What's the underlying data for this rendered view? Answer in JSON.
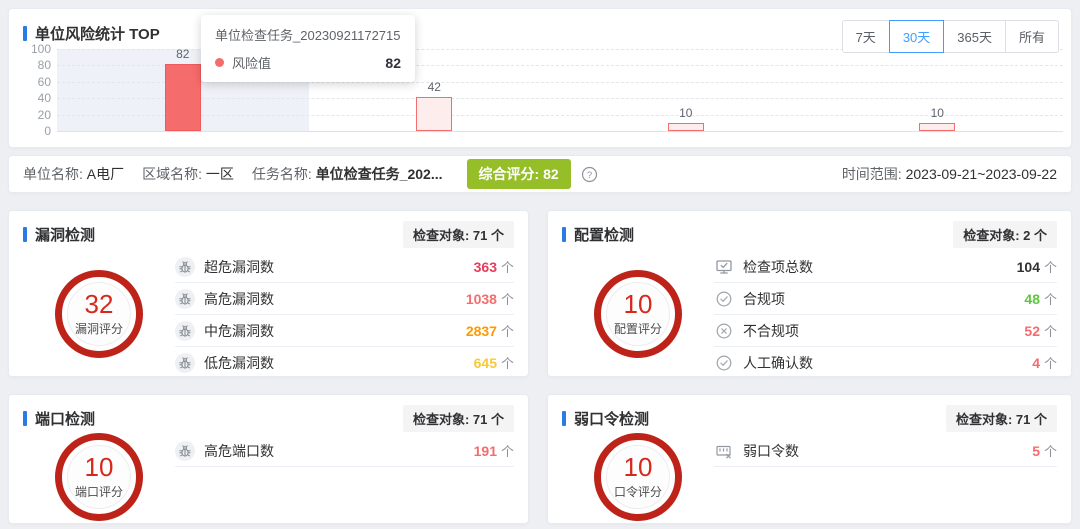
{
  "colors": {
    "accent_blue": "#409eff",
    "title_marker_blue": "#2b7be4",
    "bar_fill": "#f56c6c",
    "bar_fill_light": "#fdeded",
    "score_ring_red": "#be231a",
    "score_number_red": "#d7281e",
    "overall_badge_green": "#96be28",
    "value_crimson": "#e63c5a",
    "value_coral": "#f56c6c",
    "value_orange": "#ff9900",
    "value_yellow": "#fac832",
    "value_green": "#5cc83c",
    "value_dark": "#303133"
  },
  "chart_panel": {
    "title": "单位风险统计 TOP",
    "filters": {
      "options": [
        "7天",
        "30天",
        "365天",
        "所有"
      ],
      "active_index": 1
    },
    "tooltip": {
      "title": "单位检查任务_20230921172715",
      "series_label": "风险值",
      "value": "82"
    }
  },
  "chart_data": {
    "type": "bar",
    "title": "单位风险统计 TOP",
    "categories": [
      "单位检查任务_20230921172715",
      "",
      "",
      ""
    ],
    "series": [
      {
        "name": "风险值",
        "values": [
          82,
          42,
          10,
          10
        ]
      }
    ],
    "bar_labels": [
      "82",
      "42",
      "10",
      "10"
    ],
    "xlabel": "",
    "ylabel": "",
    "ylim": [
      0,
      100
    ],
    "yticks": [
      0,
      20,
      40,
      60,
      80,
      100
    ],
    "grid": "horizontal-dashed",
    "legend_position": "none",
    "highlighted_category_index": 0
  },
  "info_bar": {
    "fields": [
      {
        "label": "单位名称:",
        "value": "A电厂"
      },
      {
        "label": "区域名称:",
        "value": "一区"
      },
      {
        "label": "任务名称:",
        "value": "单位检查任务_202..."
      }
    ],
    "score_badge": "综合评分: 82",
    "help_icon": "question-circle-icon",
    "time_label": "时间范围:",
    "time_value": "2023-09-21~2023-09-22"
  },
  "panels": [
    {
      "title": "漏洞检测",
      "target_badge": "检查对象: 71 个",
      "score": "32",
      "score_label": "漏洞评分",
      "rows": [
        {
          "icon": "bug-icon",
          "label": "超危漏洞数",
          "value": "363",
          "unit": "个",
          "color": "#e63c5a"
        },
        {
          "icon": "bug-icon",
          "label": "高危漏洞数",
          "value": "1038",
          "unit": "个",
          "color": "#f56c6c"
        },
        {
          "icon": "bug-icon",
          "label": "中危漏洞数",
          "value": "2837",
          "unit": "个",
          "color": "#ff9900"
        },
        {
          "icon": "bug-icon",
          "label": "低危漏洞数",
          "value": "645",
          "unit": "个",
          "color": "#fac832"
        }
      ]
    },
    {
      "title": "配置检测",
      "target_badge": "检查对象: 2 个",
      "score": "10",
      "score_label": "配置评分",
      "rows": [
        {
          "icon": "monitor-check-icon",
          "label": "检查项总数",
          "value": "104",
          "unit": "个",
          "color": "#303133"
        },
        {
          "icon": "check-circle-icon",
          "label": "合规项",
          "value": "48",
          "unit": "个",
          "color": "#5cc83c"
        },
        {
          "icon": "x-circle-icon",
          "label": "不合规项",
          "value": "52",
          "unit": "个",
          "color": "#f56c6c"
        },
        {
          "icon": "check-circle-icon",
          "label": "人工确认数",
          "value": "4",
          "unit": "个",
          "color": "#f56c6c"
        }
      ]
    },
    {
      "title": "端口检测",
      "target_badge": "检查对象: 71 个",
      "score": "10",
      "score_label": "端口评分",
      "rows": [
        {
          "icon": "bug-icon",
          "label": "高危端口数",
          "value": "191",
          "unit": "个",
          "color": "#f56c6c"
        }
      ]
    },
    {
      "title": "弱口令检测",
      "target_badge": "检查对象: 71 个",
      "score": "10",
      "score_label": "口令评分",
      "rows": [
        {
          "icon": "password-icon",
          "label": "弱口令数",
          "value": "5",
          "unit": "个",
          "color": "#f56c6c"
        }
      ]
    }
  ]
}
